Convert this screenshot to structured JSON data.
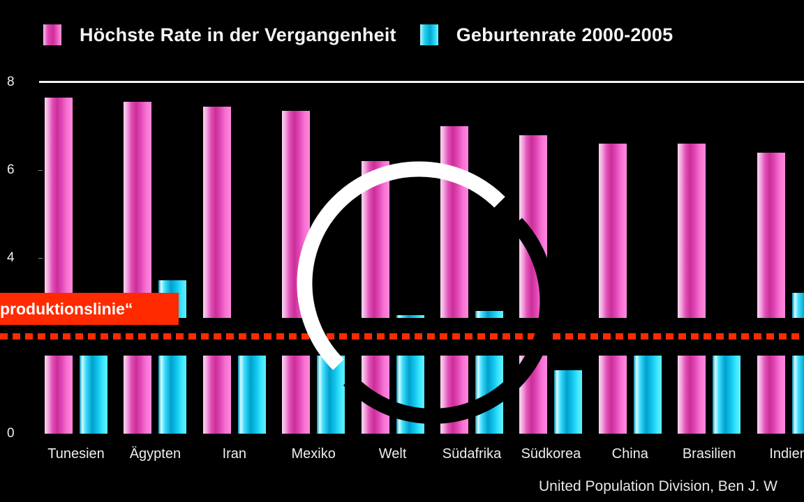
{
  "legend": {
    "items": [
      {
        "label": "Höchste Rate in der Vergangenheit",
        "color": "#e048b8"
      },
      {
        "label": "Geburtenrate 2000-2005",
        "color": "#20d0f0"
      }
    ]
  },
  "axis": {
    "y_ticks": [
      "8",
      "6",
      "4",
      "0"
    ]
  },
  "categories": [
    "Tunesien",
    "Ägypten",
    "Iran",
    "Mexiko",
    "Welt",
    "Südafrika",
    "Südkorea",
    "China",
    "Brasilien",
    "Indien"
  ],
  "reference": {
    "label": "„Reproduktionslinie“",
    "visible_label": "produktionslinie“",
    "value": 2.1,
    "color": "#ff2a00"
  },
  "source": "United Population Division, Ben J. W",
  "chart_data": {
    "type": "bar",
    "title": "",
    "xlabel": "",
    "ylabel": "",
    "ylim": [
      0,
      8
    ],
    "y_ticks": [
      0,
      4,
      6,
      8
    ],
    "axis_break": [
      2.6,
      3.4
    ],
    "grid": false,
    "legend_position": "top",
    "categories": [
      "Tunesien",
      "Ägypten",
      "Iran",
      "Mexiko",
      "Welt",
      "Südafrika",
      "Südkorea",
      "China",
      "Brasilien",
      "Indien"
    ],
    "series": [
      {
        "name": "Höchste Rate in der Vergangenheit",
        "color": "#e048b8",
        "values": [
          7.65,
          7.55,
          7.45,
          7.35,
          6.2,
          7.0,
          6.8,
          6.6,
          6.6,
          6.4
        ]
      },
      {
        "name": "Geburtenrate 2000-2005",
        "color": "#20d0f0",
        "values": [
          1.8,
          3.5,
          2.0,
          2.5,
          2.7,
          2.8,
          1.45,
          1.8,
          2.3,
          3.2
        ]
      }
    ],
    "annotations": [
      {
        "type": "hline",
        "y": 2.1,
        "style": "dotted",
        "color": "#ff2a00",
        "label": "„Reproduktionslinie“"
      }
    ]
  }
}
